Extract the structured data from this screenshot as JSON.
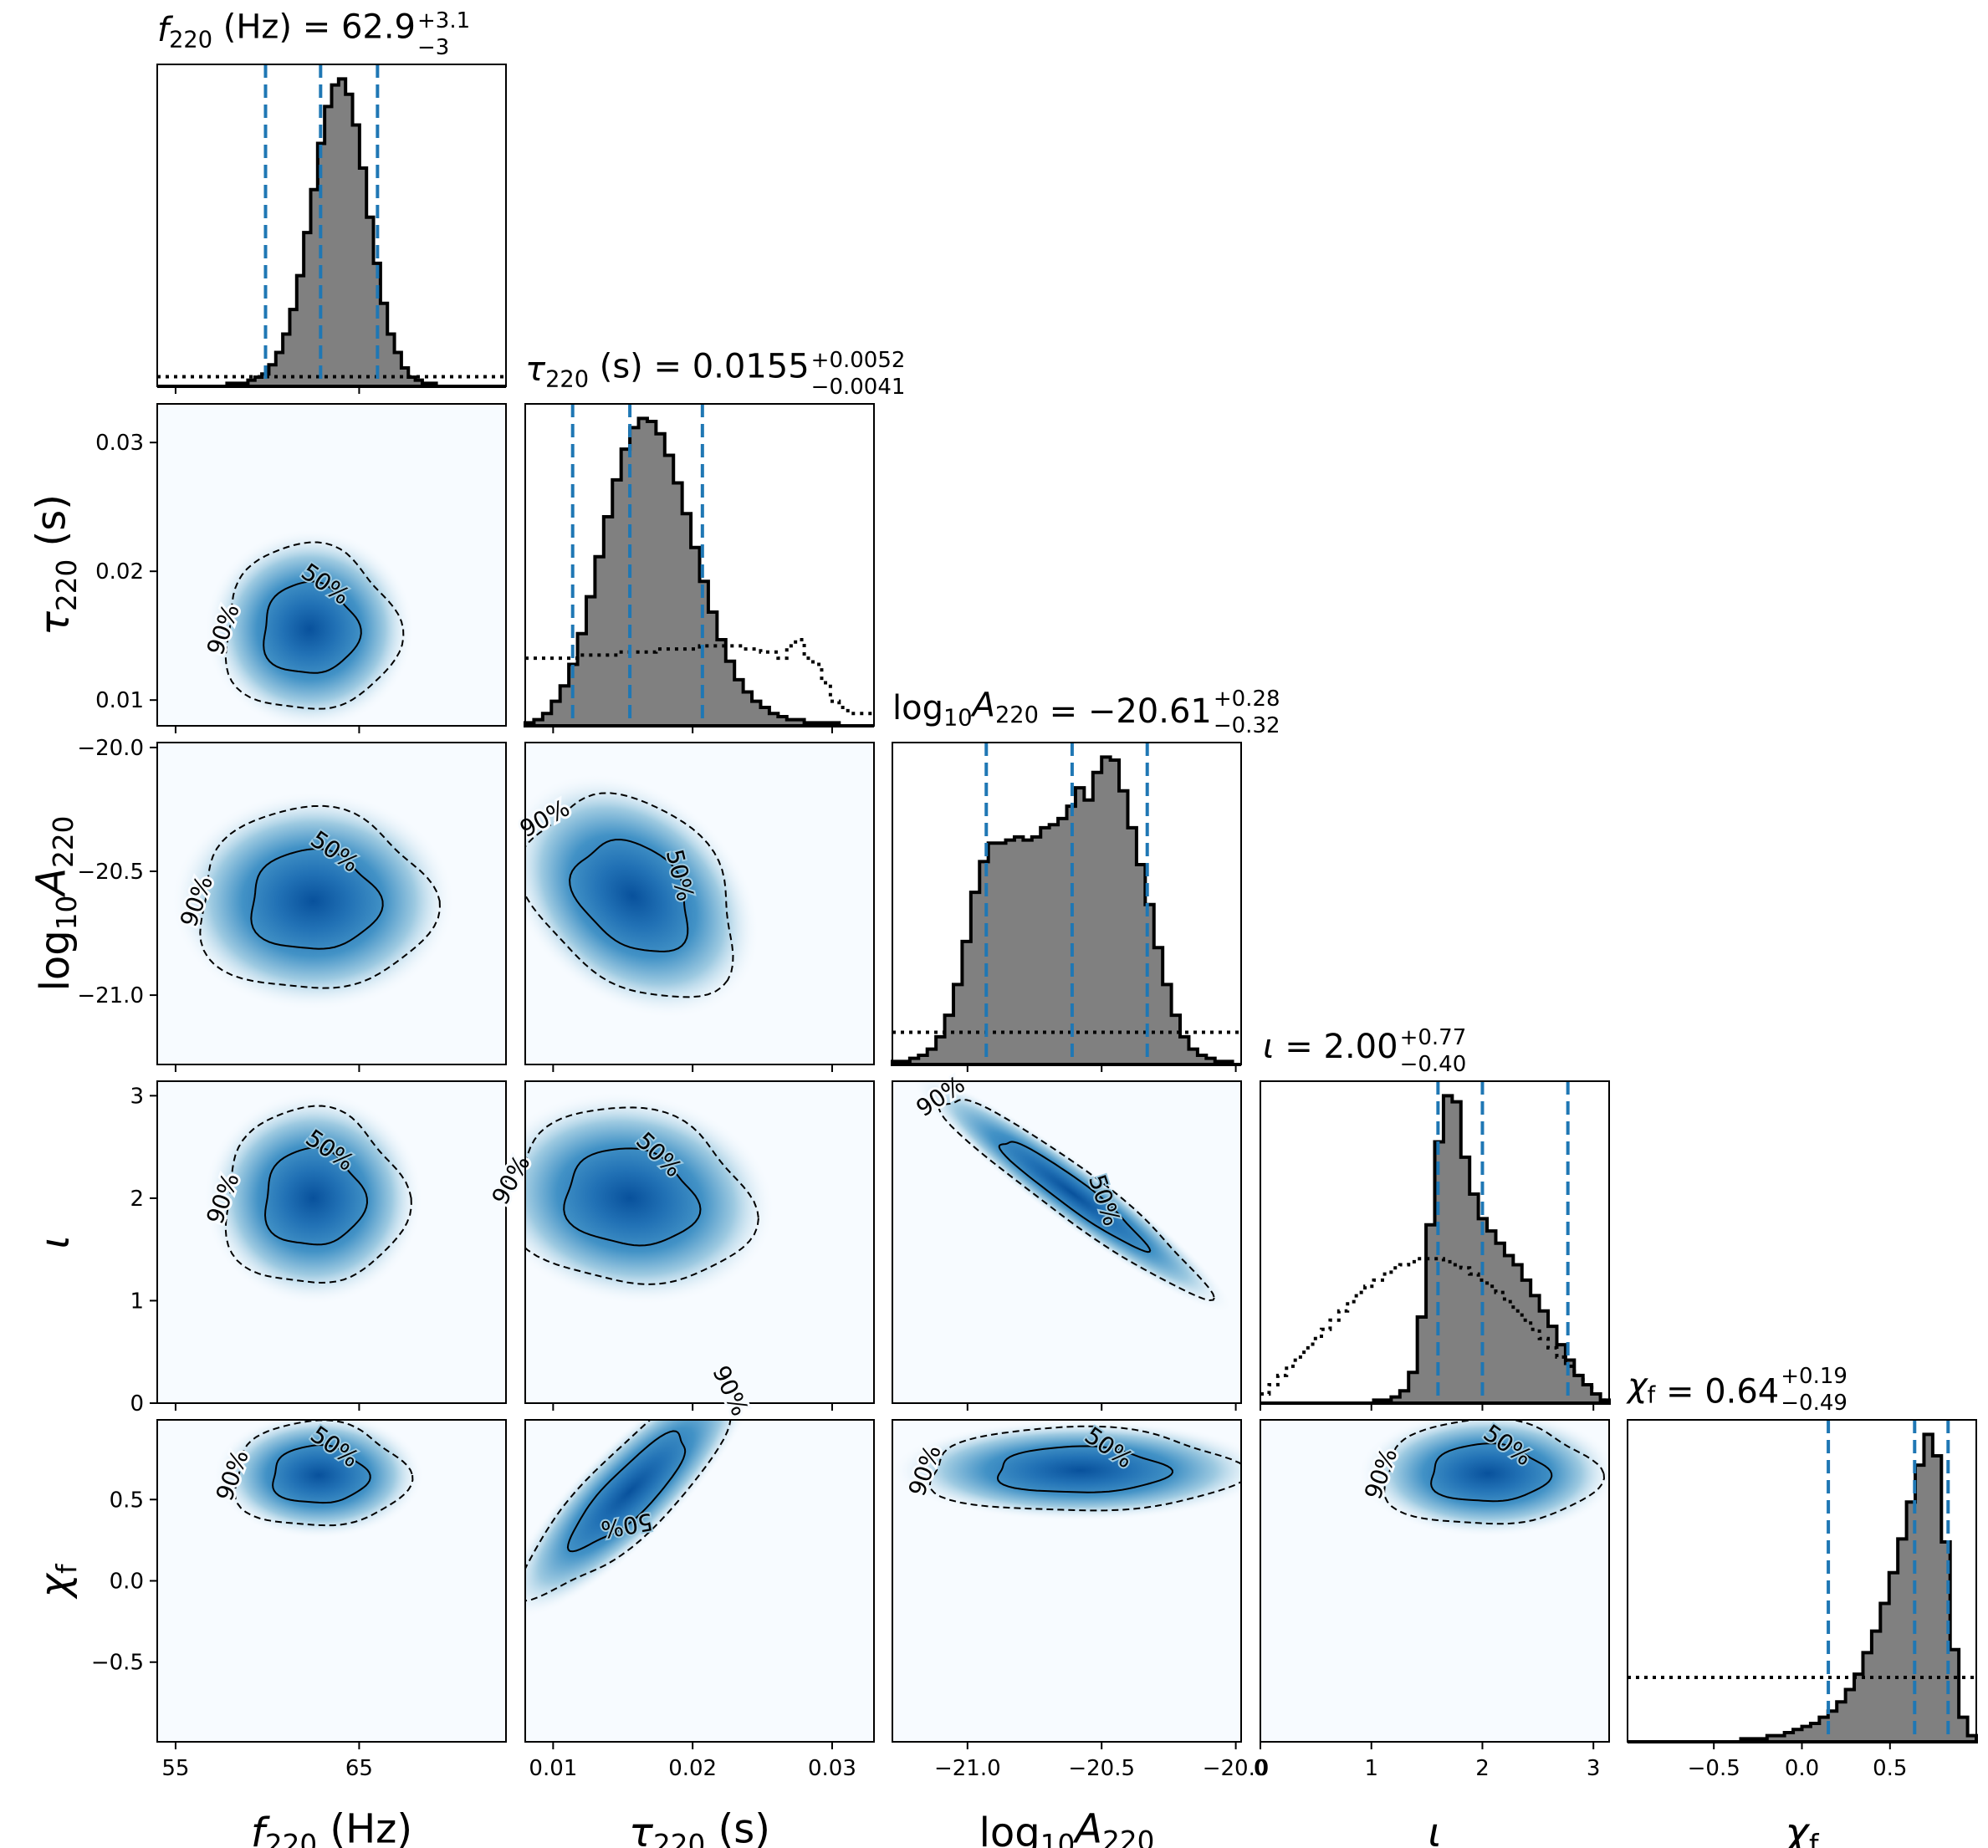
{
  "chart_data": {
    "type": "corner",
    "grid": false,
    "colors": {
      "hist_fill": "#808080",
      "quantile_line": "#1f77b4",
      "density_colormap": "Blues",
      "contour": "#000000"
    },
    "contour_levels": [
      "50%",
      "90%"
    ],
    "parameters": [
      {
        "key": "f220",
        "label_main": "f",
        "label_sub": "220",
        "label_unit": " (Hz)",
        "title_value": "62.9",
        "title_plus": "+3.1",
        "title_minus": "−3",
        "range": [
          54,
          73
        ],
        "ticks": [
          55,
          65
        ],
        "tick_labels": [
          "55",
          "65"
        ],
        "median": 62.9,
        "plus": 3.1,
        "minus": 3.0,
        "posterior_hist": [
          0,
          0,
          0,
          0,
          0,
          0,
          0,
          0,
          0,
          0,
          1,
          1,
          1,
          2,
          3,
          4,
          7,
          11,
          17,
          25,
          36,
          50,
          64,
          79,
          91,
          98,
          100,
          95,
          85,
          71,
          55,
          40,
          27,
          17,
          11,
          6,
          3,
          2,
          1,
          1,
          0,
          0,
          0,
          0,
          0,
          0,
          0,
          0,
          0,
          0
        ],
        "prior_level": 0.03
      },
      {
        "key": "tau220",
        "label_main": "τ",
        "label_sub": "220",
        "label_unit": " (s)",
        "title_value": "0.0155",
        "title_plus": "+0.0052",
        "title_minus": "−0.0041",
        "range": [
          0.008,
          0.033
        ],
        "ticks": [
          0.01,
          0.02,
          0.03
        ],
        "tick_labels": [
          "0.01",
          "0.02",
          "0.03"
        ],
        "median": 0.0155,
        "plus": 0.0052,
        "minus": 0.0041,
        "posterior_hist": [
          1,
          2,
          4,
          8,
          13,
          20,
          30,
          42,
          55,
          68,
          80,
          90,
          97,
          100,
          99,
          95,
          88,
          79,
          69,
          58,
          47,
          37,
          28,
          21,
          15,
          11,
          8,
          6,
          4,
          3,
          2,
          2,
          1,
          1,
          1,
          1,
          0,
          0,
          0,
          0
        ],
        "prior_hist": [
          22,
          22,
          22,
          22,
          22,
          22,
          23,
          23,
          23,
          23,
          23,
          24,
          24,
          24,
          24,
          25,
          25,
          25,
          25,
          25,
          26,
          26,
          26,
          26,
          26,
          25,
          25,
          24,
          24,
          22,
          26,
          28,
          22,
          20,
          14,
          8,
          6,
          4,
          4,
          4
        ]
      },
      {
        "key": "logA220",
        "label_main": "log",
        "label_sub": "10",
        "label_var": "A",
        "label_varsub": "220",
        "title_value": "−20.61",
        "title_plus": "+0.28",
        "title_minus": "−0.32",
        "range": [
          -21.28,
          -19.98
        ],
        "ticks": [
          -21.0,
          -20.5,
          -20.0
        ],
        "tick_labels": [
          "−21.0",
          "−20.5",
          "−20.0"
        ],
        "median": -20.61,
        "plus": 0.28,
        "minus": 0.32,
        "posterior_hist": [
          1,
          1,
          2,
          3,
          5,
          9,
          16,
          26,
          40,
          56,
          66,
          72,
          72,
          73,
          74,
          73,
          74,
          77,
          78,
          80,
          84,
          90,
          86,
          95,
          100,
          99,
          89,
          77,
          65,
          52,
          38,
          26,
          16,
          9,
          5,
          3,
          2,
          1,
          1,
          0
        ],
        "prior_level": 0.1
      },
      {
        "key": "iota",
        "label_main": "ι",
        "title_value": "2.00",
        "title_plus": "+0.77",
        "title_minus": "−0.40",
        "range": [
          0,
          3.14159
        ],
        "ticks": [
          0,
          1,
          2,
          3
        ],
        "tick_labels": [
          "0",
          "1",
          "2",
          "3"
        ],
        "median": 2.0,
        "plus": 0.77,
        "minus": 0.4,
        "posterior_hist": [
          0,
          0,
          0,
          0,
          0,
          0,
          0,
          0,
          0,
          0,
          0,
          0,
          0,
          1,
          1,
          2,
          4,
          10,
          28,
          58,
          85,
          100,
          98,
          80,
          68,
          60,
          56,
          52,
          48,
          45,
          40,
          35,
          30,
          25,
          19,
          14,
          9,
          6,
          3,
          1
        ],
        "prior_hist": [
          3,
          6,
          9,
          12,
          15,
          18,
          21,
          24,
          27,
          30,
          33,
          36,
          38,
          40,
          42,
          44,
          45,
          46,
          47,
          47,
          47,
          46,
          45,
          44,
          42,
          40,
          38,
          36,
          33,
          30,
          27,
          24,
          21,
          18,
          15,
          12,
          9,
          6,
          3,
          1
        ]
      },
      {
        "key": "chif",
        "label_main": "χ",
        "label_sub": "f",
        "title_value": "0.64",
        "title_plus": "+0.19",
        "title_minus": "−0.49",
        "range": [
          -0.99,
          0.99
        ],
        "ticks": [
          -0.5,
          0.0,
          0.5
        ],
        "tick_labels": [
          "−0.5",
          "0.0",
          "0.5"
        ],
        "median": 0.64,
        "plus": 0.19,
        "minus": 0.49,
        "posterior_hist": [
          0,
          0,
          0,
          0,
          0,
          0,
          0,
          0,
          0,
          0,
          0,
          0,
          0,
          1,
          1,
          1,
          2,
          2,
          3,
          4,
          5,
          6,
          8,
          10,
          13,
          17,
          22,
          29,
          36,
          45,
          55,
          66,
          78,
          90,
          100,
          93,
          65,
          30,
          8,
          2
        ],
        "prior_level": 0.2
      }
    ],
    "pairs": [
      {
        "x": "f220",
        "y": "tau220",
        "mean": [
          62.3,
          0.0155
        ],
        "sd": [
          2.2,
          0.003
        ],
        "rho": 0.0,
        "labels": [
          "90%",
          "50%"
        ]
      },
      {
        "x": "f220",
        "y": "logA220",
        "mean": [
          62.5,
          -20.62
        ],
        "sd": [
          2.3,
          0.22
        ],
        "rho": 0.0,
        "labels": [
          "50%",
          "90%"
        ]
      },
      {
        "x": "tau220",
        "y": "logA220",
        "mean": [
          0.0157,
          -20.6
        ],
        "sd": [
          0.0035,
          0.19
        ],
        "rho": -0.3,
        "labels": [
          "90%",
          "50%"
        ]
      },
      {
        "x": "f220",
        "y": "iota",
        "mean": [
          62.5,
          2.0
        ],
        "sd": [
          2.3,
          0.4
        ],
        "rho": 0.0,
        "labels": [
          "90%",
          "50%"
        ]
      },
      {
        "x": "tau220",
        "y": "iota",
        "mean": [
          0.0155,
          2.0
        ],
        "sd": [
          0.004,
          0.4
        ],
        "rho": -0.1,
        "labels": [
          "50%",
          "90%"
        ]
      },
      {
        "x": "logA220",
        "y": "iota",
        "mean": [
          -20.61,
          2.05
        ],
        "sd": [
          0.23,
          0.45
        ],
        "rho": -0.95,
        "labels": [
          "90%",
          "50%"
        ]
      },
      {
        "x": "f220",
        "y": "chif",
        "mean": [
          62.8,
          0.65
        ],
        "sd": [
          2.2,
          0.15
        ],
        "rho": 0.0,
        "labels": [
          "90%",
          "50%"
        ]
      },
      {
        "x": "tau220",
        "y": "chif",
        "mean": [
          0.0155,
          0.55
        ],
        "sd": [
          0.0035,
          0.3
        ],
        "rho": 0.85,
        "labels": [
          "90%",
          "50%"
        ]
      },
      {
        "x": "logA220",
        "y": "chif",
        "mean": [
          -20.58,
          0.68
        ],
        "sd": [
          0.27,
          0.12
        ],
        "rho": 0.0,
        "labels": [
          "90%",
          "50%"
        ]
      },
      {
        "x": "iota",
        "y": "chif",
        "mean": [
          2.05,
          0.66
        ],
        "sd": [
          0.45,
          0.15
        ],
        "rho": 0.0,
        "labels": [
          "90%",
          "50%"
        ]
      }
    ]
  }
}
